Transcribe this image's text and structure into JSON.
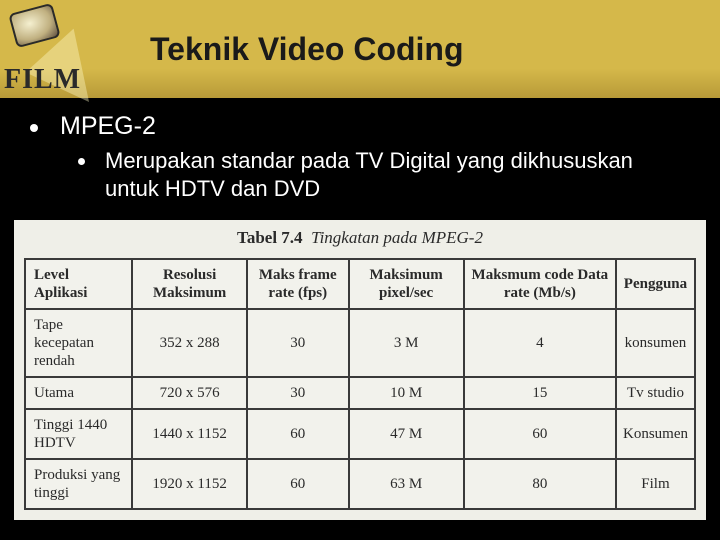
{
  "header": {
    "logo_text": "FILM",
    "title": "Teknik Video Coding"
  },
  "content": {
    "bullet1": "MPEG-2",
    "bullet2": "Merupakan standar pada TV Digital yang dikhususkan untuk HDTV dan DVD"
  },
  "table": {
    "caption_label": "Tabel 7.4",
    "caption_text": "Tingkatan pada MPEG-2",
    "columns": [
      "Level Aplikasi",
      "Resolusi Maksimum",
      "Maks frame rate (fps)",
      "Maksimum pixel/sec",
      "Maksmum code Data rate (Mb/s)",
      "Pengguna"
    ],
    "rows": [
      [
        "Tape kecepatan rendah",
        "352 x 288",
        "30",
        "3 M",
        "4",
        "konsumen"
      ],
      [
        "Utama",
        "720 x 576",
        "30",
        "10 M",
        "15",
        "Tv studio"
      ],
      [
        "Tinggi 1440 HDTV",
        "1440 x 1152",
        "60",
        "47 M",
        "60",
        "Konsumen"
      ],
      [
        "Produksi yang tinggi",
        "1920 x 1152",
        "60",
        "63 M",
        "80",
        "Film"
      ]
    ],
    "styling": {
      "header_bg": "#d5b84a",
      "slide_bg": "#000000",
      "text_color": "#ffffff",
      "table_bg": "#efefe8",
      "table_border": "#3a3a3a",
      "title_fontsize": 32,
      "bullet1_fontsize": 25,
      "bullet2_fontsize": 22,
      "table_fontsize": 15
    }
  }
}
